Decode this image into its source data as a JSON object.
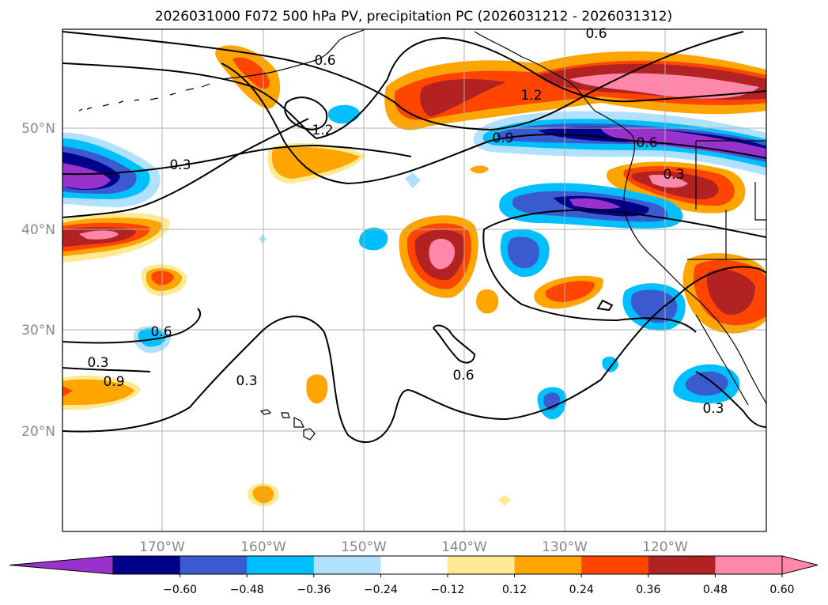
{
  "title": "2026031000 F072 500 hPa PV, precipitation PC (2026031212 - 2026031312)",
  "map": {
    "lat_ticks": [
      {
        "value": 50,
        "label": "50°N"
      },
      {
        "value": 40,
        "label": "40°N"
      },
      {
        "value": 30,
        "label": "30°N"
      },
      {
        "value": 20,
        "label": "20°N"
      }
    ],
    "lon_ticks": [
      {
        "value": -170,
        "label": "170°W"
      },
      {
        "value": -160,
        "label": "160°W"
      },
      {
        "value": -150,
        "label": "150°W"
      },
      {
        "value": -140,
        "label": "140°W"
      },
      {
        "value": -130,
        "label": "130°W"
      },
      {
        "value": -120,
        "label": "120°W"
      }
    ],
    "extent": {
      "lon_min": -180,
      "lon_max": -110,
      "lat_min": 10,
      "lat_max": 60
    },
    "gridlines": true,
    "contour_labels": [
      "0.6",
      "0.6",
      "1.2",
      "1.2",
      "0.9",
      "0.6",
      "0.3",
      "0.3",
      "0.6",
      "0.3",
      "0.6",
      "0.3",
      "0.9",
      "0.3"
    ]
  },
  "colorbar": {
    "colors": [
      "#9932cc",
      "#00008b",
      "#3a5ad0",
      "#00bfff",
      "#b0e2ff",
      "#ffffff",
      "#ffe993",
      "#ffa500",
      "#ff4500",
      "#b22222",
      "#ff88aa",
      "#ff88aa"
    ],
    "neg_end_color": "#9932cc",
    "pos_end_color": "#ff88aa",
    "tick_labels": [
      "−0.60",
      "−0.48",
      "−0.36",
      "−0.24",
      "−0.12",
      "0.12",
      "0.24",
      "0.36",
      "0.48",
      "0.60"
    ]
  }
}
